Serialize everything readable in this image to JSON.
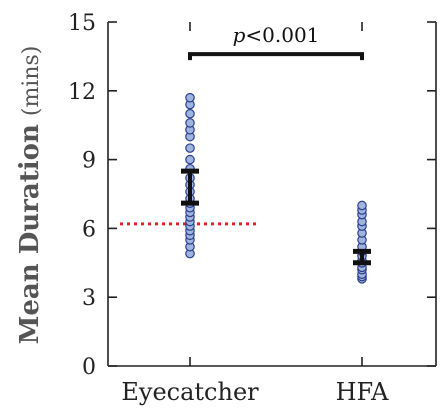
{
  "chart_data": {
    "type": "scatter",
    "ylabel": "Mean Duration",
    "ylabel_unit": "(mins)",
    "ylim": [
      0,
      15
    ],
    "yticks": [
      0,
      3,
      6,
      9,
      12,
      15
    ],
    "categories": [
      "Eyecatcher",
      "HFA"
    ],
    "series": [
      {
        "category": "Eyecatcher",
        "points": [
          4.9,
          5.2,
          5.5,
          5.7,
          5.9,
          6.1,
          6.3,
          6.5,
          6.7,
          6.9,
          7.1,
          7.3,
          7.6,
          7.9,
          8.2,
          8.6,
          9.0,
          9.5,
          10.0,
          10.3,
          10.6,
          11.0,
          11.4,
          11.7
        ],
        "mean_ci": [
          7.1,
          8.5
        ],
        "point_color": "#9fb4de",
        "point_edge_color": "#2b3f8c"
      },
      {
        "category": "HFA",
        "points": [
          3.8,
          3.9,
          4.0,
          4.2,
          4.3,
          4.5,
          4.6,
          4.8,
          5.0,
          5.2,
          5.5,
          5.8,
          6.1,
          6.3,
          6.6,
          6.8,
          7.0
        ],
        "mean_ci": [
          4.5,
          5.0
        ],
        "point_color": "#9fb4de",
        "point_edge_color": "#2b3f8c"
      }
    ],
    "reference_line": {
      "y": 6.2,
      "x_span": [
        "Eyecatcher"
      ],
      "color": "#e0202a",
      "style": "dotted"
    },
    "significance": {
      "between": [
        "Eyecatcher",
        "HFA"
      ],
      "y": 13.6,
      "label": "p<0.001",
      "label_italic_part": "p",
      "label_rest": "<0.001"
    },
    "errorbar_color": "#111111"
  }
}
